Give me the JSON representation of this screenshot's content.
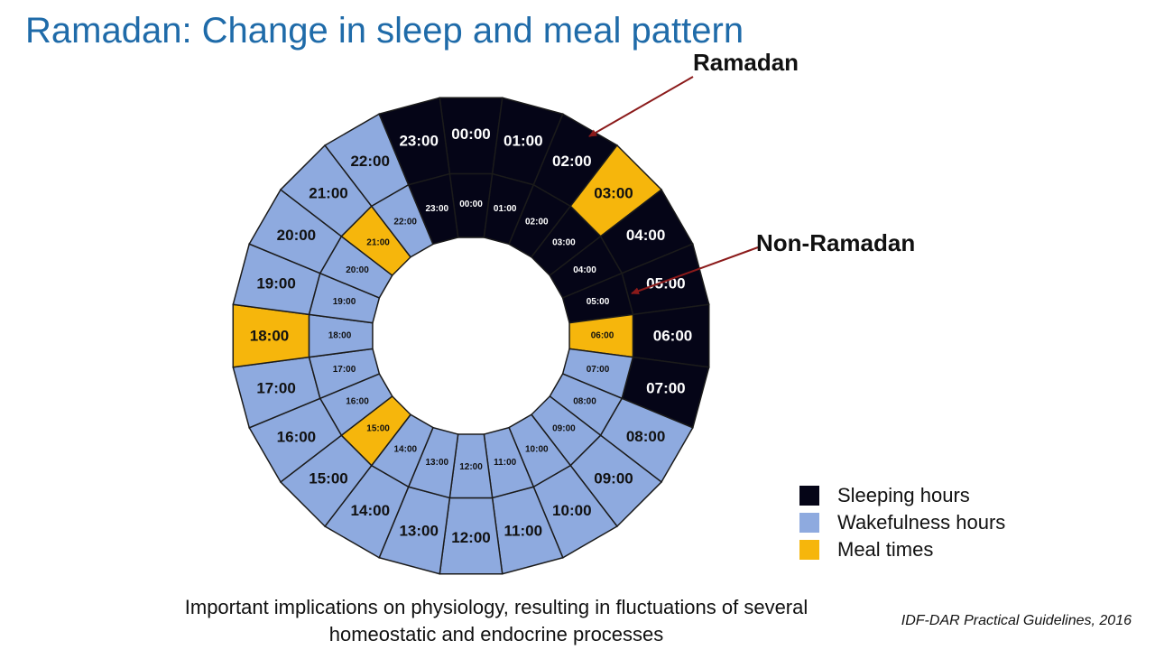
{
  "title": "Ramadan: Change in sleep and meal pattern",
  "callouts": {
    "ramadan": "Ramadan",
    "non_ramadan": "Non-Ramadan"
  },
  "colors": {
    "sleep": "#050517",
    "wake": "#8eaadf",
    "meal": "#f6b60c",
    "border": "#1b1b1b",
    "arrow": "#8b1a1a"
  },
  "rings": {
    "outer": {
      "name": "Ramadan",
      "segments": [
        {
          "label": "00:00",
          "state": "sleep"
        },
        {
          "label": "01:00",
          "state": "sleep"
        },
        {
          "label": "02:00",
          "state": "sleep"
        },
        {
          "label": "03:00",
          "state": "meal"
        },
        {
          "label": "04:00",
          "state": "sleep"
        },
        {
          "label": "05:00",
          "state": "sleep"
        },
        {
          "label": "06:00",
          "state": "sleep"
        },
        {
          "label": "07:00",
          "state": "sleep"
        },
        {
          "label": "08:00",
          "state": "wake"
        },
        {
          "label": "09:00",
          "state": "wake"
        },
        {
          "label": "10:00",
          "state": "wake"
        },
        {
          "label": "11:00",
          "state": "wake"
        },
        {
          "label": "12:00",
          "state": "wake"
        },
        {
          "label": "13:00",
          "state": "wake"
        },
        {
          "label": "14:00",
          "state": "wake"
        },
        {
          "label": "15:00",
          "state": "wake"
        },
        {
          "label": "16:00",
          "state": "wake"
        },
        {
          "label": "17:00",
          "state": "wake"
        },
        {
          "label": "18:00",
          "state": "meal"
        },
        {
          "label": "19:00",
          "state": "wake"
        },
        {
          "label": "20:00",
          "state": "wake"
        },
        {
          "label": "21:00",
          "state": "wake"
        },
        {
          "label": "22:00",
          "state": "wake"
        },
        {
          "label": "23:00",
          "state": "sleep"
        }
      ]
    },
    "inner": {
      "name": "Non-Ramadan",
      "segments": [
        {
          "label": "00:00",
          "state": "sleep"
        },
        {
          "label": "01:00",
          "state": "sleep"
        },
        {
          "label": "02:00",
          "state": "sleep"
        },
        {
          "label": "03:00",
          "state": "sleep"
        },
        {
          "label": "04:00",
          "state": "sleep"
        },
        {
          "label": "05:00",
          "state": "sleep"
        },
        {
          "label": "06:00",
          "state": "meal"
        },
        {
          "label": "07:00",
          "state": "wake"
        },
        {
          "label": "08:00",
          "state": "wake"
        },
        {
          "label": "09:00",
          "state": "wake"
        },
        {
          "label": "10:00",
          "state": "wake"
        },
        {
          "label": "11:00",
          "state": "wake"
        },
        {
          "label": "12:00",
          "state": "wake"
        },
        {
          "label": "13:00",
          "state": "wake"
        },
        {
          "label": "14:00",
          "state": "wake"
        },
        {
          "label": "15:00",
          "state": "meal"
        },
        {
          "label": "16:00",
          "state": "wake"
        },
        {
          "label": "17:00",
          "state": "wake"
        },
        {
          "label": "18:00",
          "state": "wake"
        },
        {
          "label": "19:00",
          "state": "wake"
        },
        {
          "label": "20:00",
          "state": "wake"
        },
        {
          "label": "21:00",
          "state": "meal"
        },
        {
          "label": "22:00",
          "state": "wake"
        },
        {
          "label": "23:00",
          "state": "sleep"
        }
      ]
    }
  },
  "legend": [
    {
      "label": "Sleeping hours",
      "state": "sleep"
    },
    {
      "label": "Wakefulness hours",
      "state": "wake"
    },
    {
      "label": "Meal times",
      "state": "meal"
    }
  ],
  "footer": {
    "line1": "Important implications on physiology, resulting in fluctuations of several",
    "line2": "homeostatic and endocrine processes"
  },
  "citation": "IDF-DAR Practical Guidelines, 2016"
}
